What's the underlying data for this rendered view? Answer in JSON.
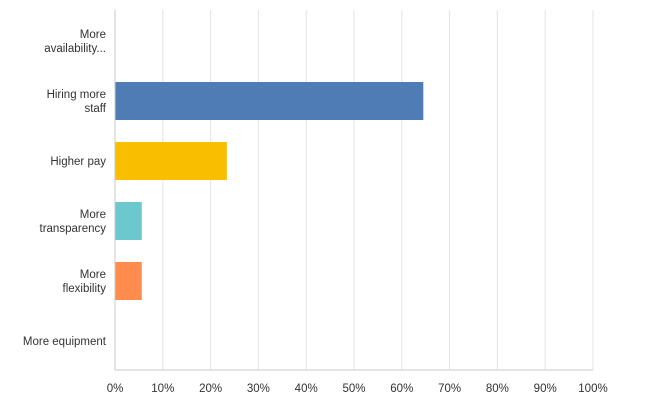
{
  "chart_data": {
    "type": "bar",
    "orientation": "horizontal",
    "categories": [
      [
        "More",
        "availability..."
      ],
      [
        "Hiring more",
        "staff"
      ],
      [
        "Higher pay"
      ],
      [
        "More",
        "transparency"
      ],
      [
        "More",
        "flexibility"
      ],
      [
        "More equipment"
      ]
    ],
    "values": [
      0,
      64.5,
      23.4,
      5.6,
      5.6,
      0
    ],
    "colors": [
      "#507cb6",
      "#507cb6",
      "#f9be00",
      "#6bc8cd",
      "#ff8b4f",
      "#507cb6"
    ],
    "xlim": [
      0,
      100
    ],
    "xticks": [
      0,
      10,
      20,
      30,
      40,
      50,
      60,
      70,
      80,
      90,
      100
    ],
    "xtick_labels": [
      "0%",
      "10%",
      "20%",
      "30%",
      "40%",
      "50%",
      "60%",
      "70%",
      "80%",
      "90%",
      "100%"
    ],
    "grid": true,
    "title": "",
    "xlabel": "",
    "ylabel": ""
  }
}
